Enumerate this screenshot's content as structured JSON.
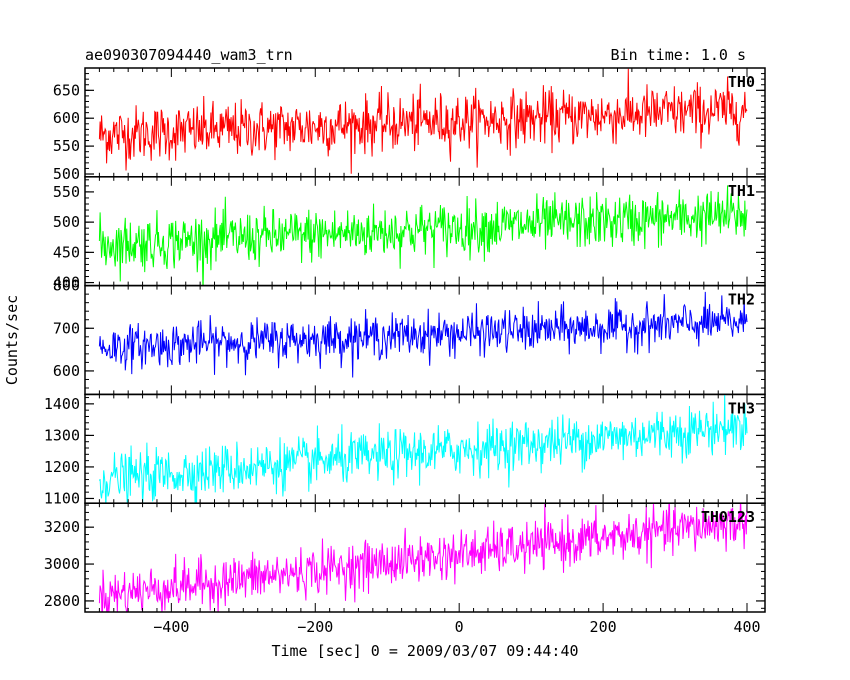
{
  "chart_data": {
    "type": "line",
    "title": "ae090307094440_wam3_trn",
    "subtitle": "Bin time: 1.0 s",
    "xlabel": "Time [sec] 0 = 2009/03/07 09:44:40",
    "ylabel": "Counts/sec",
    "xlim": [
      -520,
      425
    ],
    "x_ticks": [
      -400,
      -200,
      0,
      200,
      400
    ],
    "x_tick_labels": [
      "−400",
      "−200",
      "0",
      "200",
      "400"
    ],
    "x_range": [
      -500,
      400
    ],
    "grid": false,
    "legend": "none",
    "panels": [
      {
        "name": "TH0",
        "color": "#ff0000",
        "ylim": [
          495,
          690
        ],
        "y_ticks": [
          500,
          550,
          600,
          650
        ],
        "y_tick_labels": [
          "500",
          "550",
          "600",
          "650"
        ],
        "trend_start": 570,
        "trend_end": 615,
        "noise": 25
      },
      {
        "name": "TH1",
        "color": "#00ff00",
        "ylim": [
          395,
          575
        ],
        "y_ticks": [
          400,
          450,
          500,
          550
        ],
        "y_tick_labels": [
          "400",
          "450",
          "500",
          "550"
        ],
        "trend_start": 463,
        "trend_end": 512,
        "noise": 22
      },
      {
        "name": "TH2",
        "color": "#0000ff",
        "ylim": [
          545,
          800
        ],
        "y_ticks": [
          600,
          700,
          800
        ],
        "y_tick_labels": [
          "600",
          "700",
          "800"
        ],
        "trend_start": 655,
        "trend_end": 715,
        "noise": 25
      },
      {
        "name": "TH3",
        "color": "#00ffff",
        "ylim": [
          1085,
          1430
        ],
        "y_ticks": [
          1100,
          1200,
          1300,
          1400
        ],
        "y_tick_labels": [
          "1100",
          "1200",
          "1300",
          "1400"
        ],
        "trend_start": 1160,
        "trend_end": 1330,
        "noise": 40
      },
      {
        "name": "TH0123",
        "color": "#ff00ff",
        "ylim": [
          2740,
          3330
        ],
        "y_ticks": [
          2800,
          3000,
          3200
        ],
        "y_tick_labels": [
          "2800",
          "3000",
          "3200"
        ],
        "trend_start": 2830,
        "trend_end": 3230,
        "noise": 65
      }
    ]
  }
}
